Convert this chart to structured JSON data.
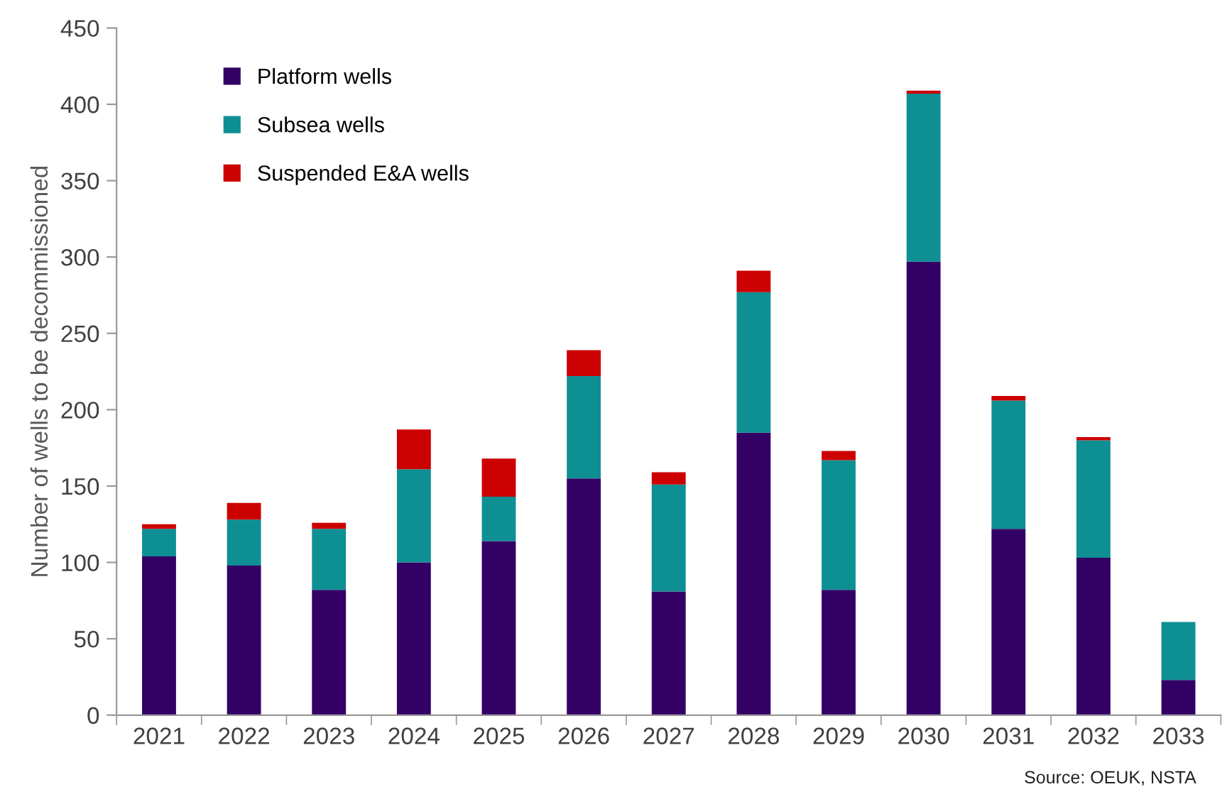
{
  "chart_data": {
    "type": "bar",
    "stacked": true,
    "ylabel": "Number of wells to be decommissioned",
    "categories": [
      "2021",
      "2022",
      "2023",
      "2024",
      "2025",
      "2026",
      "2027",
      "2028",
      "2029",
      "2030",
      "2031",
      "2032",
      "2033"
    ],
    "series": [
      {
        "name": "Platform wells",
        "color": "#330066",
        "values": [
          104,
          98,
          82,
          100,
          114,
          155,
          81,
          185,
          82,
          297,
          122,
          103,
          23
        ]
      },
      {
        "name": "Subsea wells",
        "color": "#0e8f94",
        "values": [
          18,
          30,
          40,
          61,
          29,
          67,
          70,
          92,
          85,
          110,
          84,
          77,
          38
        ]
      },
      {
        "name": "Suspended E&A wells",
        "color": "#cc0000",
        "values": [
          3,
          11,
          4,
          26,
          25,
          17,
          8,
          14,
          6,
          2,
          3,
          2,
          0
        ]
      }
    ],
    "ylim": [
      0,
      450
    ],
    "yticks": [
      0,
      50,
      100,
      150,
      200,
      250,
      300,
      350,
      400,
      450
    ],
    "legend": "top left",
    "grid": false,
    "annotations": [
      "Source: OEUK, NSTA"
    ]
  }
}
